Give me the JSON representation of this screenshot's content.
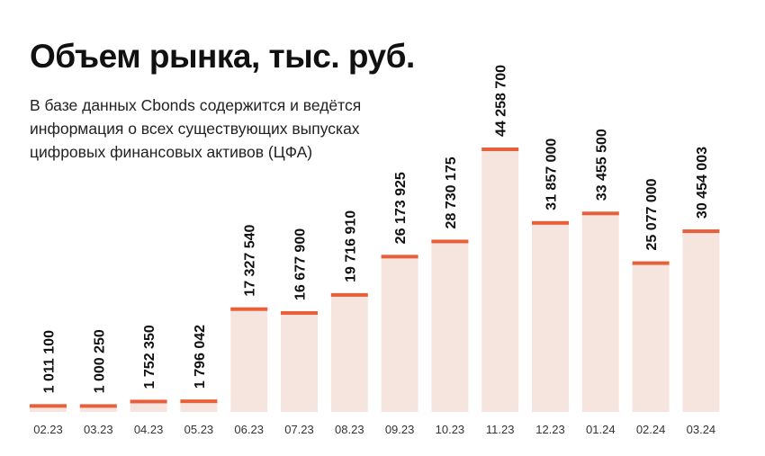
{
  "header": {
    "title": "Объем рынка, тыс. руб.",
    "subtitle": "В базе данных Cbonds содержится и ведётся информация о всех существующих выпусках цифровых финансовых активов (ЦФА)"
  },
  "colors": {
    "bar_fill": "#f6e4df",
    "bar_cap": "#e8603a",
    "label": "#111111"
  },
  "chart_data": {
    "type": "bar",
    "title": "Объем рынка, тыс. руб.",
    "categories": [
      "02.23",
      "03.23",
      "04.23",
      "05.23",
      "06.23",
      "07.23",
      "08.23",
      "09.23",
      "10.23",
      "11.23",
      "12.23",
      "01.24",
      "02.24",
      "03.24"
    ],
    "values": [
      1011100,
      1000250,
      1752350,
      1796042,
      17327540,
      16677900,
      19716910,
      26173925,
      28730175,
      44258700,
      31857000,
      33455500,
      25077000,
      30454003
    ],
    "value_labels": [
      "1 011 100",
      "1 000 250",
      "1 752 350",
      "1 796 042",
      "17 327 540",
      "16 677 900",
      "19 716 910",
      "26 173 925",
      "28 730 175",
      "44 258 700",
      "31 857 000",
      "33 455 500",
      "25 077 000",
      "30 454 003"
    ],
    "ylim": [
      0,
      44258700
    ],
    "grid": false,
    "legend": "none"
  }
}
